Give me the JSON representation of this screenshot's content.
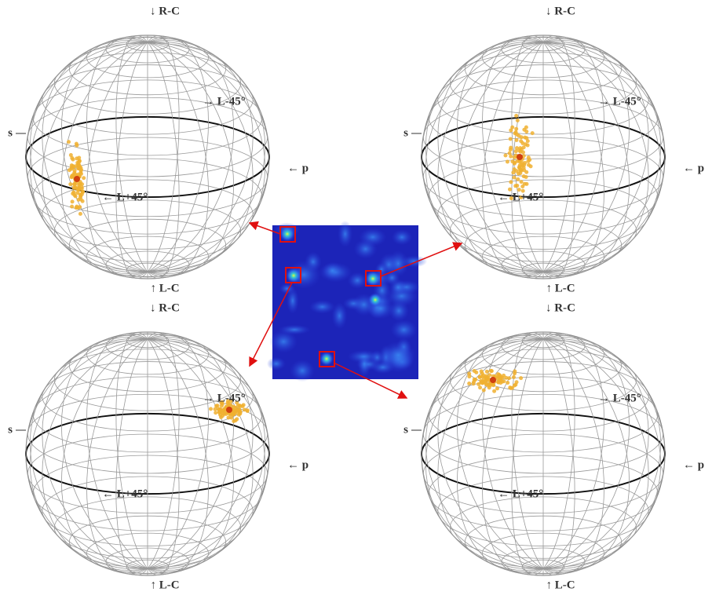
{
  "spheres": [
    {
      "labels": {
        "top": "↓ R-C",
        "bottom": "↑ L-C",
        "left": "s",
        "right": "← p",
        "upper": "→ L-45°",
        "lower": "← L+45°"
      }
    },
    {
      "labels": {
        "top": "↓ R-C",
        "bottom": "↑ L-C",
        "left": "s",
        "right": "← p",
        "upper": "→ L-45°",
        "lower": "← L+45°"
      }
    },
    {
      "labels": {
        "top": "↓ R-C",
        "bottom": "↑ L-C",
        "left": "s",
        "right": "← p",
        "upper": "→ L-45°",
        "lower": "← L+45°"
      }
    },
    {
      "labels": {
        "top": "↓ R-C",
        "bottom": "↑ L-C",
        "left": "s",
        "right": "← p",
        "upper": "→ L-45°",
        "lower": "← L+45°"
      }
    }
  ]
}
